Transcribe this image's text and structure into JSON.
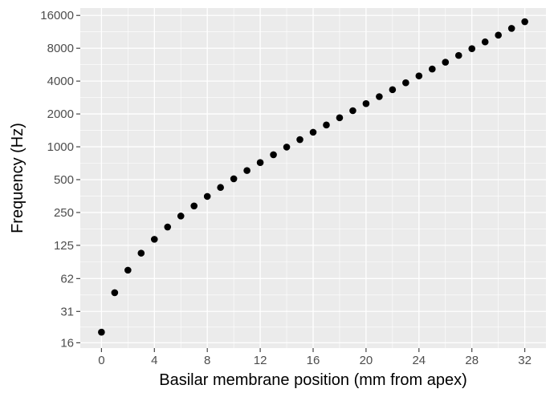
{
  "chart_data": {
    "type": "scatter",
    "title": "",
    "xlabel": "Basilar membrane position (mm from apex)",
    "ylabel": "Frequency (Hz)",
    "xlim": [
      -1.6,
      33.6
    ],
    "ylim": [
      14.3,
      18700
    ],
    "y_scale": "log",
    "x_ticks": [
      0,
      4,
      8,
      12,
      16,
      20,
      24,
      28,
      32
    ],
    "x_tick_labels": [
      "0",
      "4",
      "8",
      "12",
      "16",
      "20",
      "24",
      "28",
      "32"
    ],
    "y_ticks": [
      16,
      31,
      62,
      125,
      250,
      500,
      1000,
      2000,
      4000,
      8000,
      16000
    ],
    "y_tick_labels": [
      "16",
      "31",
      "62",
      "125",
      "250",
      "500",
      "1000",
      "2000",
      "4000",
      "8000",
      "16000"
    ],
    "grid": true,
    "legend": "none",
    "colors": {
      "panel": "#ebebeb",
      "grid": "#ffffff",
      "point": "#000000",
      "tick": "#333333"
    },
    "series": [
      {
        "x": [
          0,
          1,
          2,
          3,
          4,
          5,
          6,
          7,
          8,
          9,
          10,
          11,
          12,
          13,
          14,
          15,
          16,
          17,
          18,
          19,
          20,
          21,
          22,
          23,
          24,
          25,
          26,
          27,
          28,
          29,
          30,
          31,
          32
        ],
        "y": [
          20,
          46,
          74,
          106,
          142,
          184,
          232,
          287,
          351,
          424,
          509,
          606,
          717,
          846,
          994,
          1164,
          1360,
          1585,
          1845,
          2143,
          2487,
          2882,
          3338,
          3861,
          4464,
          5158,
          5956,
          6876,
          7933,
          9150,
          10551,
          12162,
          14017
        ]
      }
    ]
  }
}
